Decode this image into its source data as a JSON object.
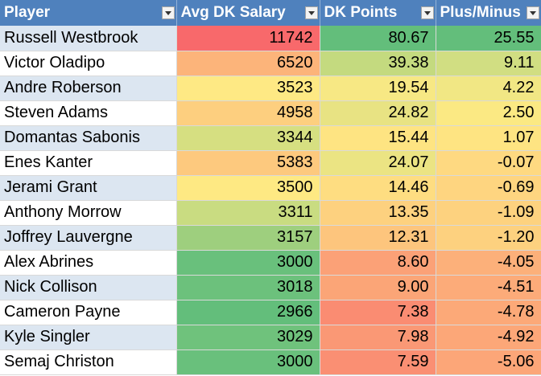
{
  "headers": [
    {
      "label": "Player"
    },
    {
      "label": "Avg DK Salary"
    },
    {
      "label": "DK Points"
    },
    {
      "label": "Plus/Minus"
    }
  ],
  "rows": [
    {
      "player": "Russell Westbrook",
      "salary": "11742",
      "points": "80.67",
      "plus_minus": "25.55",
      "salary_color": "#f8696b",
      "points_color": "#63be7b",
      "pm_color": "#63be7b"
    },
    {
      "player": "Victor Oladipo",
      "salary": "6520",
      "points": "39.38",
      "plus_minus": "9.11",
      "salary_color": "#fcb47a",
      "points_color": "#c4da7f",
      "pm_color": "#d1de82"
    },
    {
      "player": "Andre Roberson",
      "salary": "3523",
      "points": "19.54",
      "plus_minus": "4.22",
      "salary_color": "#fee984",
      "points_color": "#f7e884",
      "pm_color": "#f1e784"
    },
    {
      "player": "Steven Adams",
      "salary": "4958",
      "points": "24.82",
      "plus_minus": "2.50",
      "salary_color": "#fdcf7f",
      "points_color": "#e8e383",
      "pm_color": "#fbe983"
    },
    {
      "player": "Domantas Sabonis",
      "salary": "3344",
      "points": "15.44",
      "plus_minus": "1.07",
      "salary_color": "#d6df81",
      "points_color": "#fee482",
      "pm_color": "#fee482"
    },
    {
      "player": "Enes Kanter",
      "salary": "5383",
      "points": "24.07",
      "plus_minus": "-0.07",
      "salary_color": "#fdc97e",
      "points_color": "#ebe483",
      "pm_color": "#fed981"
    },
    {
      "player": "Jerami Grant",
      "salary": "3500",
      "points": "14.46",
      "plus_minus": "-0.69",
      "salary_color": "#fee983",
      "points_color": "#fedd81",
      "pm_color": "#fed580"
    },
    {
      "player": "Anthony Morrow",
      "salary": "3311",
      "points": "13.35",
      "plus_minus": "-1.09",
      "salary_color": "#c9dc81",
      "points_color": "#fdd17f",
      "pm_color": "#fdd27f"
    },
    {
      "player": "Joffrey Lauvergne",
      "salary": "3157",
      "points": "12.31",
      "plus_minus": "-1.20",
      "salary_color": "#9ecf7e",
      "points_color": "#fdc57d",
      "pm_color": "#fdd17f"
    },
    {
      "player": "Alex Abrines",
      "salary": "3000",
      "points": "8.60",
      "plus_minus": "-4.05",
      "salary_color": "#69c07c",
      "points_color": "#fba177",
      "pm_color": "#fcb07a"
    },
    {
      "player": "Nick Collison",
      "salary": "3018",
      "points": "9.00",
      "plus_minus": "-4.51",
      "salary_color": "#6cc17c",
      "points_color": "#fba577",
      "pm_color": "#fcab79"
    },
    {
      "player": "Cameron Payne",
      "salary": "2966",
      "points": "7.38",
      "plus_minus": "-4.78",
      "salary_color": "#63be7b",
      "points_color": "#fa8c72",
      "pm_color": "#fca978"
    },
    {
      "player": "Kyle Singler",
      "salary": "3029",
      "points": "7.98",
      "plus_minus": "-4.92",
      "salary_color": "#6fc27c",
      "points_color": "#fa9875",
      "pm_color": "#fca778"
    },
    {
      "player": "Semaj Christon",
      "salary": "3000",
      "points": "7.59",
      "plus_minus": "-5.06",
      "salary_color": "#69c07c",
      "points_color": "#fa8f73",
      "pm_color": "#fca678"
    }
  ]
}
